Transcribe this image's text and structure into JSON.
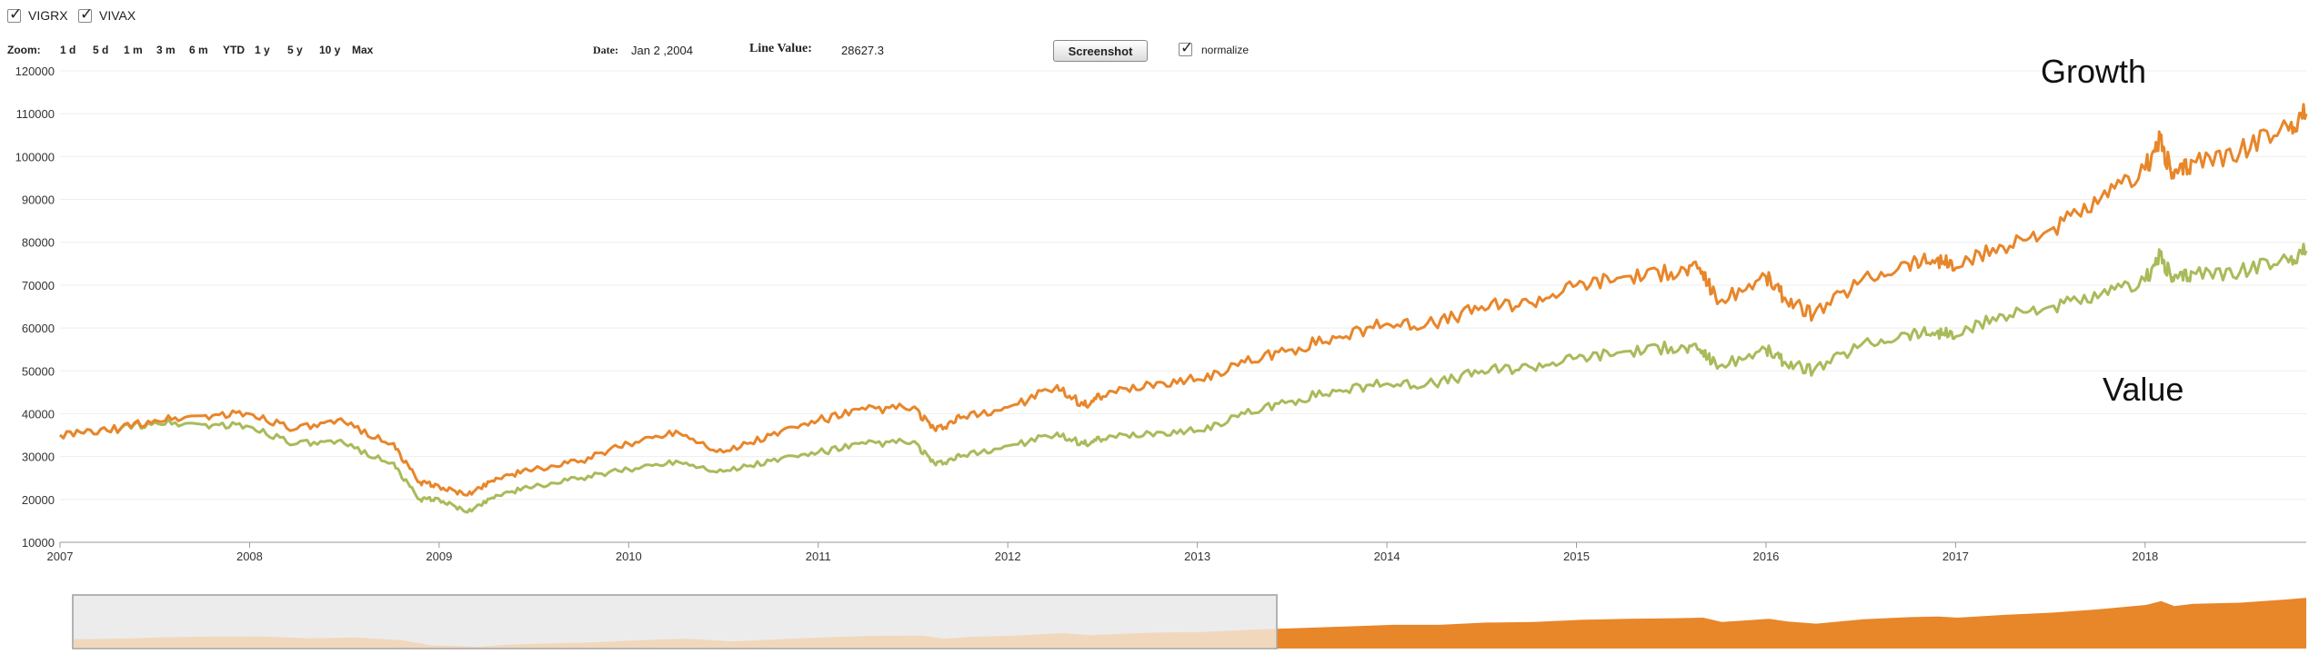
{
  "legend": [
    {
      "label": "VIGRX",
      "checked": true
    },
    {
      "label": "VIVAX",
      "checked": true
    }
  ],
  "toolbar": {
    "zoom_label": "Zoom:",
    "zoom_options": [
      "1 d",
      "5 d",
      "1 m",
      "3 m",
      "6 m",
      "YTD",
      "1 y",
      "5 y",
      "10 y",
      "Max"
    ],
    "date_label": "Date:",
    "date_value": "Jan 2 ,2004",
    "line_value_label": "Line Value:",
    "line_value": "28627.3",
    "screenshot_label": "Screenshot",
    "normalize_label": "normalize",
    "normalize_checked": true
  },
  "annotations": {
    "growth": "Growth",
    "value": "Value"
  },
  "colors": {
    "growth": "#e8862a",
    "value": "#a8bb5a",
    "navigator_fill": "#e8862a",
    "navigator_faded": "#f1d8bd",
    "navigator_window": "#ececec"
  },
  "chart_data": {
    "type": "line",
    "xlabel": "",
    "ylabel": "",
    "xlim": [
      2007.0,
      2018.85
    ],
    "ylim": [
      10000,
      120000
    ],
    "x_ticks": [
      "2007",
      "2008",
      "2009",
      "2010",
      "2011",
      "2012",
      "2013",
      "2014",
      "2015",
      "2016",
      "2017",
      "2018"
    ],
    "y_ticks": [
      "10000",
      "20000",
      "30000",
      "40000",
      "50000",
      "60000",
      "70000",
      "80000",
      "90000",
      "100000",
      "110000",
      "120000"
    ],
    "grid": true,
    "series": [
      {
        "name": "VIGRX",
        "x": [
          2007.0,
          2007.25,
          2007.5,
          2007.75,
          2008.0,
          2008.25,
          2008.5,
          2008.75,
          2008.9,
          2009.0,
          2009.15,
          2009.3,
          2009.5,
          2009.75,
          2010.0,
          2010.25,
          2010.5,
          2010.75,
          2011.0,
          2011.25,
          2011.5,
          2011.62,
          2011.75,
          2012.0,
          2012.25,
          2012.4,
          2012.5,
          2012.75,
          2013.0,
          2013.25,
          2013.5,
          2013.75,
          2014.0,
          2014.25,
          2014.5,
          2014.75,
          2015.0,
          2015.25,
          2015.5,
          2015.65,
          2015.75,
          2016.0,
          2016.1,
          2016.25,
          2016.5,
          2016.75,
          2016.9,
          2017.0,
          2017.25,
          2017.5,
          2017.75,
          2018.0,
          2018.08,
          2018.15,
          2018.25,
          2018.5,
          2018.75,
          2018.85
        ],
        "values": [
          35000,
          36000,
          38500,
          39500,
          40000,
          36500,
          38000,
          33000,
          24000,
          23000,
          21000,
          25000,
          27000,
          29000,
          33000,
          36000,
          31000,
          35000,
          38500,
          41000,
          41500,
          36000,
          39000,
          41500,
          46000,
          42000,
          44000,
          47000,
          48000,
          52000,
          55000,
          58000,
          61000,
          61000,
          65000,
          66000,
          70000,
          72000,
          73000,
          74000,
          66000,
          72000,
          67000,
          63000,
          71000,
          75000,
          76000,
          74000,
          79000,
          83000,
          89000,
          97000,
          104000,
          95000,
          99000,
          101000,
          107000,
          110000
        ]
      },
      {
        "name": "VIVAX",
        "x": [
          2007.0,
          2007.25,
          2007.5,
          2007.75,
          2008.0,
          2008.25,
          2008.5,
          2008.75,
          2008.9,
          2009.0,
          2009.15,
          2009.3,
          2009.5,
          2009.75,
          2010.0,
          2010.25,
          2010.5,
          2010.75,
          2011.0,
          2011.25,
          2011.5,
          2011.62,
          2011.75,
          2012.0,
          2012.25,
          2012.4,
          2012.5,
          2012.75,
          2013.0,
          2013.25,
          2013.5,
          2013.75,
          2014.0,
          2014.25,
          2014.5,
          2014.75,
          2015.0,
          2015.25,
          2015.5,
          2015.65,
          2015.75,
          2016.0,
          2016.1,
          2016.25,
          2016.5,
          2016.75,
          2016.9,
          2017.0,
          2017.25,
          2017.5,
          2017.75,
          2018.0,
          2018.08,
          2018.15,
          2018.25,
          2018.5,
          2018.75,
          2018.85
        ],
        "values": [
          35000,
          36000,
          38000,
          37500,
          37000,
          33000,
          33000,
          28500,
          20000,
          20000,
          17000,
          21000,
          23000,
          25000,
          27000,
          29000,
          26500,
          29000,
          31000,
          33000,
          33500,
          28000,
          30000,
          32500,
          35000,
          33000,
          34000,
          35500,
          36000,
          40000,
          43000,
          45500,
          47000,
          47000,
          50000,
          51000,
          53000,
          54500,
          55500,
          55000,
          51000,
          55000,
          52000,
          50000,
          56000,
          58500,
          59000,
          58000,
          63000,
          65000,
          67000,
          71000,
          77000,
          71000,
          73000,
          73000,
          76000,
          78000
        ]
      }
    ]
  }
}
